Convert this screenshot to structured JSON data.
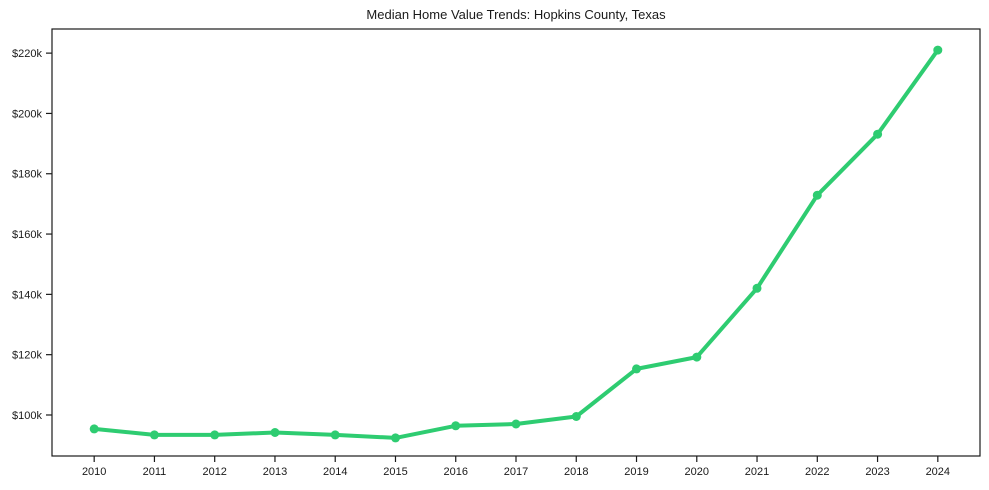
{
  "chart_data": {
    "type": "line",
    "title": "Median Home Value Trends: Hopkins County, Texas",
    "xlabel": "",
    "ylabel": "",
    "x": [
      2010,
      2011,
      2012,
      2013,
      2014,
      2015,
      2016,
      2017,
      2018,
      2019,
      2020,
      2021,
      2022,
      2023,
      2024
    ],
    "values": [
      95400,
      93400,
      93400,
      94200,
      93400,
      92400,
      96400,
      97000,
      99500,
      115300,
      119200,
      142000,
      172900,
      193100,
      221000
    ],
    "x_tick_labels": [
      "2010",
      "2011",
      "2012",
      "2013",
      "2014",
      "2015",
      "2016",
      "2017",
      "2018",
      "2019",
      "2020",
      "2021",
      "2022",
      "2023",
      "2024"
    ],
    "y_ticks": [
      100000,
      120000,
      140000,
      160000,
      180000,
      200000,
      220000
    ],
    "y_tick_labels": [
      "$100k",
      "$120k",
      "$140k",
      "$160k",
      "$180k",
      "$200k",
      "$220k"
    ],
    "xlim": [
      2009.3,
      2024.7
    ],
    "ylim": [
      86400,
      228000
    ],
    "grid": false,
    "legend": "none",
    "line_color": "#2ecc71",
    "marker": "circle",
    "axis_color": "#1a1a1a",
    "background_color": "#ffffff"
  }
}
